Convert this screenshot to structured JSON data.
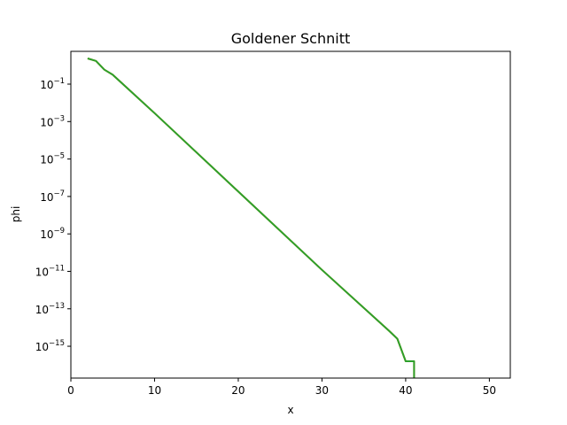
{
  "chart_data": {
    "type": "line",
    "title": "Goldener Schnitt",
    "xlabel": "x",
    "ylabel": "phi",
    "xlim": [
      0,
      52.5
    ],
    "ylim_log10": [
      -16.7,
      0.75
    ],
    "yscale": "log",
    "xticks": [
      0,
      10,
      20,
      30,
      40,
      50
    ],
    "yticks": [
      {
        "base": "10",
        "exp": "−1"
      },
      {
        "base": "10",
        "exp": "−3"
      },
      {
        "base": "10",
        "exp": "−5"
      },
      {
        "base": "10",
        "exp": "−7"
      },
      {
        "base": "10",
        "exp": "−9"
      },
      {
        "base": "10",
        "exp": "−11"
      },
      {
        "base": "10",
        "exp": "−13"
      },
      {
        "base": "10",
        "exp": "−15"
      }
    ],
    "yticks_log10": [
      -1,
      -3,
      -5,
      -7,
      -9,
      -11,
      -13,
      -15
    ],
    "grid": false,
    "series": [
      {
        "color": "#ff7f0e",
        "x": [
          2,
          3,
          4,
          5,
          10,
          20,
          30,
          38,
          39,
          40,
          41,
          41
        ],
        "y_log10": [
          0.37,
          0.24,
          -0.23,
          -0.5,
          -2.55,
          -6.74,
          -10.92,
          -14.17,
          -14.6,
          -15.8,
          -15.8,
          -16.7
        ]
      },
      {
        "color": "#2ca02c",
        "x": [
          2,
          3,
          4,
          5,
          10,
          20,
          30,
          38,
          39,
          40,
          41,
          41
        ],
        "y_log10": [
          0.37,
          0.24,
          -0.23,
          -0.5,
          -2.55,
          -6.74,
          -10.92,
          -14.17,
          -14.6,
          -15.8,
          -15.8,
          -16.7
        ]
      }
    ]
  }
}
